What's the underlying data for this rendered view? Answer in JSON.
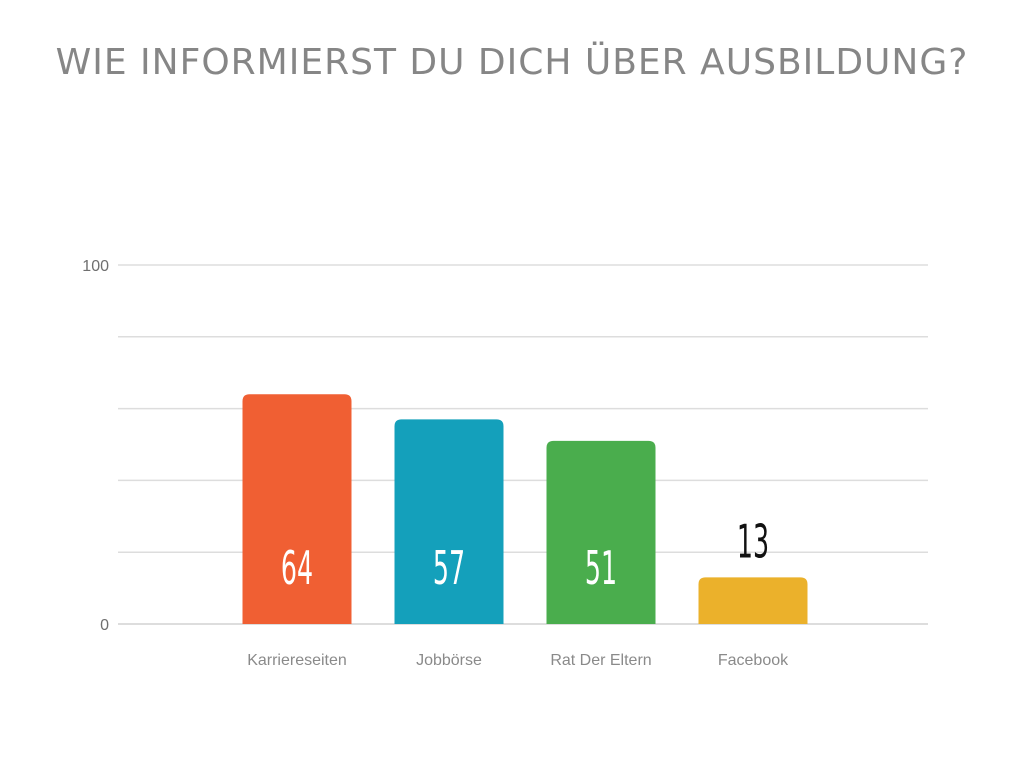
{
  "chart_data": {
    "type": "bar",
    "title": "WIE INFORMIERST DU DICH ÜBER AUSBILDUNG?",
    "categories": [
      "Karriereseiten",
      "Jobbörse",
      "Rat Der Eltern",
      "Facebook"
    ],
    "values": [
      64,
      57,
      51,
      13
    ],
    "ylim": [
      0,
      100
    ],
    "yticks": [
      0,
      100
    ],
    "grid": true,
    "xlabel": "",
    "ylabel": "",
    "colors": [
      "#f05f33",
      "#14a0bb",
      "#4aad4d",
      "#ebb12b"
    ],
    "value_label_colors": [
      "#ffffff",
      "#ffffff",
      "#ffffff",
      "#111111"
    ]
  }
}
